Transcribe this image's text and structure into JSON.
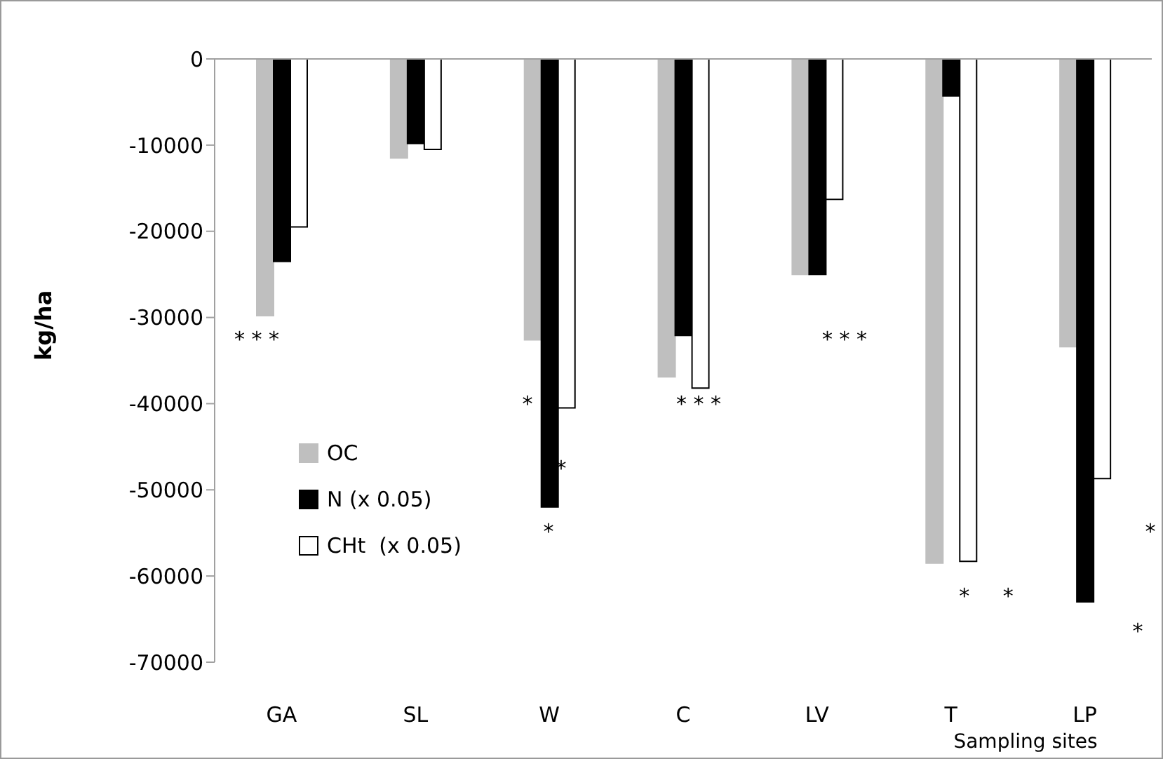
{
  "chart_data": {
    "type": "bar",
    "xlabel": "Sampling sites",
    "ylabel": "kg/ha",
    "categories": [
      "GA",
      "SL",
      "W",
      "C",
      "LV",
      "T",
      "LP"
    ],
    "series": [
      {
        "name": "OC",
        "color": "#bfbfbf",
        "values": [
          -29800,
          -11500,
          -32600,
          -36900,
          -25000,
          -58500,
          -33400
        ]
      },
      {
        "name": "N (x 0.05)",
        "color": "#000000",
        "values": [
          -23500,
          -9800,
          -52000,
          -32100,
          -25000,
          -4300,
          -63000
        ]
      },
      {
        "name": "CHt  (x 0.05)",
        "color": "#ffffff",
        "values": [
          -19500,
          -10500,
          -40500,
          -38200,
          -16300,
          -58300,
          -48700
        ]
      }
    ],
    "ylim": [
      -70000,
      0
    ],
    "yticks": [
      0,
      -10000,
      -20000,
      -30000,
      -40000,
      -50000,
      -60000,
      -70000
    ],
    "legend": "left",
    "annotations": [
      "* * *",
      "*",
      "*",
      "*",
      "* * *",
      "* * *",
      "*     *",
      "*",
      "*"
    ]
  }
}
